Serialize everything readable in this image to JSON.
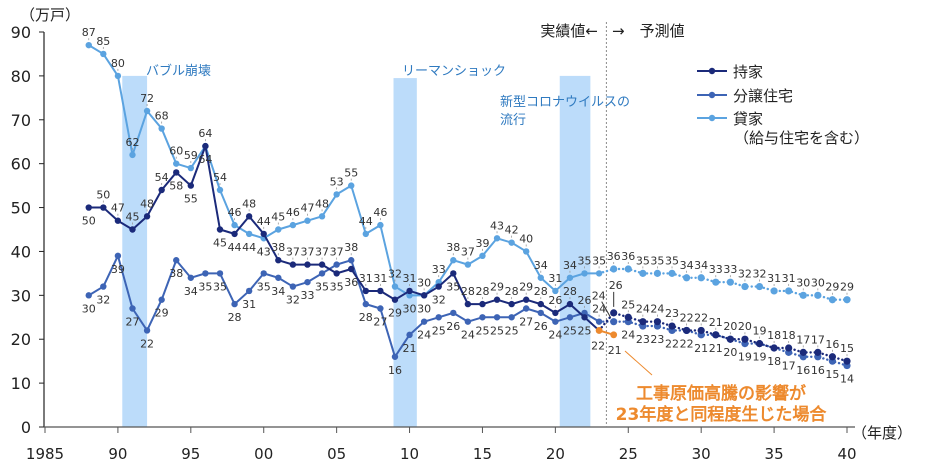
{
  "chart_data": {
    "type": "line",
    "title": "",
    "ylabel": "（万戸）",
    "xlabel": "（年度）",
    "ylim": [
      0,
      90
    ],
    "xlim": [
      1985,
      2040
    ],
    "grid": false,
    "y_ticks": [
      {
        "value": 0,
        "label": "0"
      },
      {
        "value": 10,
        "label": "10"
      },
      {
        "value": 20,
        "label": "20"
      },
      {
        "value": 30,
        "label": "30"
      },
      {
        "value": 40,
        "label": "40"
      },
      {
        "value": 50,
        "label": "50"
      },
      {
        "value": 60,
        "label": "60"
      },
      {
        "value": 70,
        "label": "70"
      },
      {
        "value": 80,
        "label": "80"
      },
      {
        "value": 90,
        "label": "90"
      }
    ],
    "x_ticks": [
      {
        "value": 1985,
        "label": "1985"
      },
      {
        "value": 1990,
        "label": "90"
      },
      {
        "value": 1995,
        "label": "95"
      },
      {
        "value": 2000,
        "label": "00"
      },
      {
        "value": 2005,
        "label": "05"
      },
      {
        "value": 2010,
        "label": "10"
      },
      {
        "value": 2015,
        "label": "15"
      },
      {
        "value": 2020,
        "label": "20"
      },
      {
        "value": 2025,
        "label": "25"
      },
      {
        "value": 2030,
        "label": "30"
      },
      {
        "value": 2035,
        "label": "35"
      },
      {
        "value": 2040,
        "label": "40"
      }
    ],
    "period_divider_year": 2023.5,
    "actual_label": "実績値←",
    "forecast_label": "→　予測値",
    "legend": {
      "position": "top-right",
      "entries": [
        "持家",
        "分譲住宅",
        "貸家"
      ],
      "note": "（給与住宅を含む）"
    },
    "colors": {
      "event_band": "#bcdcfa",
      "event_text": "#2f7ac0",
      "axis": "#222222",
      "divider": "#8a8a8a",
      "label_text": "#333333"
    },
    "events": [
      {
        "label_lines": [
          "バブル崩壊"
        ],
        "start": 1990.3,
        "end": 1992.0,
        "top": 80
      },
      {
        "label_lines": [
          "リーマンショック"
        ],
        "start": 2008.9,
        "end": 2010.5,
        "top": 79.5
      },
      {
        "label_lines": [
          "新型コロナウイルスの",
          "流行"
        ],
        "start": 2020.3,
        "end": 2022.4,
        "top": 80
      }
    ],
    "series": [
      {
        "name": "持家",
        "color": "#1b2a7a",
        "actual": {
          "start_year": 1988,
          "values": [
            50,
            50,
            47,
            45,
            48,
            54,
            58,
            55,
            64,
            45,
            44,
            48,
            44,
            38,
            37,
            37,
            37,
            35,
            36,
            31,
            31,
            29,
            31,
            30,
            32,
            35,
            28,
            28,
            29,
            28,
            29,
            28,
            26,
            28,
            25,
            22
          ]
        },
        "forecast": {
          "start_year": 2024,
          "values": [
            26,
            25,
            24,
            24,
            23,
            22,
            22,
            21,
            20,
            20,
            19,
            18,
            18,
            17,
            17,
            16,
            15
          ]
        }
      },
      {
        "name": "分譲住宅",
        "color": "#3d64b5",
        "actual": {
          "start_year": 1988,
          "values": [
            30,
            32,
            39,
            27,
            22,
            29,
            38,
            34,
            35,
            35,
            28,
            31,
            35,
            34,
            32,
            33,
            35,
            37,
            38,
            28,
            27,
            16,
            21,
            24,
            25,
            26,
            24,
            25,
            25,
            25,
            27,
            26,
            24,
            25,
            26,
            24
          ]
        },
        "forecast": {
          "start_year": 2024,
          "values": [
            24,
            24,
            23,
            23,
            22,
            22,
            21,
            21,
            20,
            19,
            19,
            18,
            17,
            16,
            16,
            15,
            14
          ]
        }
      },
      {
        "name": "貸家",
        "color": "#5ba3e0",
        "actual": {
          "start_year": 1988,
          "values": [
            87,
            85,
            80,
            62,
            72,
            68,
            60,
            59,
            64,
            54,
            46,
            44,
            43,
            45,
            46,
            47,
            48,
            53,
            55,
            44,
            46,
            32,
            30,
            30,
            33,
            38,
            37,
            39,
            43,
            42,
            40,
            34,
            31,
            34,
            35,
            35
          ]
        },
        "forecast": {
          "start_year": 2024,
          "values": [
            36,
            36,
            35,
            35,
            35,
            34,
            34,
            33,
            33,
            32,
            32,
            31,
            31,
            30,
            30,
            29,
            29
          ]
        }
      }
    ],
    "scenario": {
      "name": "工事原価高騰の影響が23年度と同程度生じた場合",
      "applies_to": "持家",
      "color": "#ed8a2e",
      "start_year": 2023,
      "values": [
        22,
        21
      ],
      "annotation_lines": [
        "工事原価高騰の影響が",
        "23年度と同程度生じた場合"
      ]
    }
  }
}
